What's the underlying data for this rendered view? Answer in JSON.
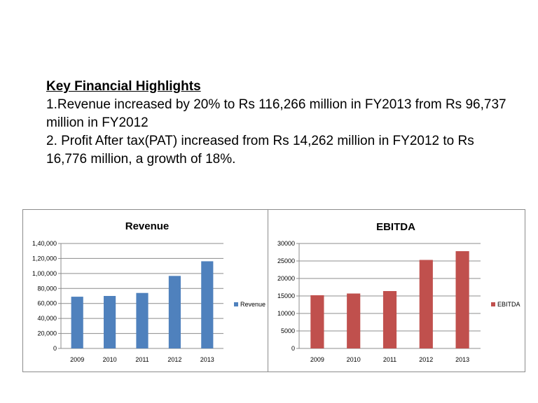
{
  "highlights": {
    "heading": "Key Financial Highlights",
    "line1": "1.Revenue increased by 20% to Rs 116,266 million in FY2013 from Rs 96,737 million in FY2012",
    "line2": "2. Profit After tax(PAT) increased from Rs 14,262 million in FY2012 to Rs 16,776 million, a growth of 18%."
  },
  "chart_data": [
    {
      "type": "bar",
      "title": "Revenue",
      "categories": [
        "2009",
        "2010",
        "2011",
        "2012",
        "2013"
      ],
      "series": [
        {
          "name": "Revenue",
          "values": [
            69000,
            70000,
            74000,
            96737,
            116266
          ],
          "color": "#4f81bd"
        }
      ],
      "y_ticks": [
        "0",
        "20,000",
        "40,000",
        "60,000",
        "80,000",
        "1,00,000",
        "1,20,000",
        "1,40,000"
      ],
      "ylim": [
        0,
        140000
      ],
      "grid": true,
      "legend": "right",
      "xlabel": "",
      "ylabel": ""
    },
    {
      "type": "bar",
      "title": "EBITDA",
      "categories": [
        "2009",
        "2010",
        "2011",
        "2012",
        "2013"
      ],
      "series": [
        {
          "name": "EBITDA",
          "values": [
            15200,
            15700,
            16400,
            25300,
            27800
          ],
          "color": "#c0504d"
        }
      ],
      "y_ticks": [
        "0",
        "5000",
        "10000",
        "15000",
        "20000",
        "25000",
        "30000"
      ],
      "ylim": [
        0,
        30000
      ],
      "grid": true,
      "legend": "right",
      "xlabel": "",
      "ylabel": ""
    }
  ]
}
